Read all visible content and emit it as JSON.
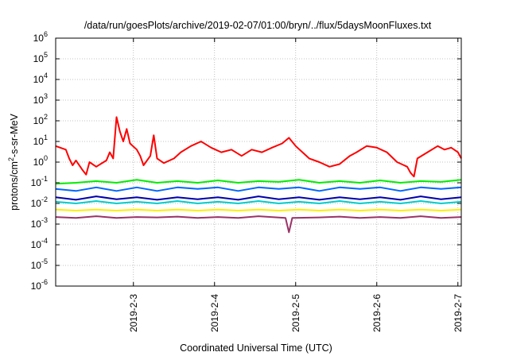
{
  "chart_data": {
    "type": "line",
    "title": "/data/run/goesPlots/archive/2019-02-07/01:00/bryn/../flux/5daysMoonFluxes.txt",
    "xlabel": "Coordinated Universal Time (UTC)",
    "ylabel_parts": {
      "base": "protons/cm",
      "sup": "2",
      "rest": "-s-sr-MeV"
    },
    "y_scale": "log",
    "ylim": [
      1e-06,
      1000000.0
    ],
    "xlim": [
      "2019-02-02T01:00",
      "2019-02-07T01:00"
    ],
    "grid": true,
    "y_tick_labels": [
      {
        "base": "10",
        "exp": "-6"
      },
      {
        "base": "10",
        "exp": "-5"
      },
      {
        "base": "10",
        "exp": "-4"
      },
      {
        "base": "10",
        "exp": "-3"
      },
      {
        "base": "10",
        "exp": "-2"
      },
      {
        "base": "10",
        "exp": "-1"
      },
      {
        "base": "10",
        "exp": "0"
      },
      {
        "base": "10",
        "exp": "1"
      },
      {
        "base": "10",
        "exp": "2"
      },
      {
        "base": "10",
        "exp": "3"
      },
      {
        "base": "10",
        "exp": "4"
      },
      {
        "base": "10",
        "exp": "5"
      },
      {
        "base": "10",
        "exp": "6"
      }
    ],
    "x_ticks": [
      {
        "label": "2019-2-3",
        "t": "2019-02-03T00:00"
      },
      {
        "label": "2019-2-4",
        "t": "2019-02-04T00:00"
      },
      {
        "label": "2019-2-5",
        "t": "2019-02-05T00:00"
      },
      {
        "label": "2019-2-6",
        "t": "2019-02-06T00:00"
      },
      {
        "label": "2019-2-7",
        "t": "2019-02-07T00:00"
      }
    ],
    "series": [
      {
        "color": "#ff0000",
        "values": [
          [
            "2019-02-02T01:00",
            6
          ],
          [
            "2019-02-02T04:00",
            4
          ],
          [
            "2019-02-02T05:00",
            1.5
          ],
          [
            "2019-02-02T06:00",
            0.7
          ],
          [
            "2019-02-02T07:00",
            1.2
          ],
          [
            "2019-02-02T09:00",
            0.4
          ],
          [
            "2019-02-02T10:00",
            0.25
          ],
          [
            "2019-02-02T11:00",
            1.0
          ],
          [
            "2019-02-02T13:00",
            0.6
          ],
          [
            "2019-02-02T16:00",
            1.2
          ],
          [
            "2019-02-02T17:00",
            3
          ],
          [
            "2019-02-02T18:00",
            1.5
          ],
          [
            "2019-02-02T19:00",
            150
          ],
          [
            "2019-02-02T20:00",
            30
          ],
          [
            "2019-02-02T21:00",
            10
          ],
          [
            "2019-02-02T22:00",
            40
          ],
          [
            "2019-02-02T23:00",
            8
          ],
          [
            "2019-02-03T01:00",
            4
          ],
          [
            "2019-02-03T02:00",
            2
          ],
          [
            "2019-02-03T03:00",
            0.7
          ],
          [
            "2019-02-03T05:00",
            2
          ],
          [
            "2019-02-03T06:00",
            20
          ],
          [
            "2019-02-03T07:00",
            1.5
          ],
          [
            "2019-02-03T09:00",
            0.9
          ],
          [
            "2019-02-03T12:00",
            1.5
          ],
          [
            "2019-02-03T14:00",
            3
          ],
          [
            "2019-02-03T17:00",
            6
          ],
          [
            "2019-02-03T20:00",
            10
          ],
          [
            "2019-02-03T23:00",
            5
          ],
          [
            "2019-02-04T02:00",
            3
          ],
          [
            "2019-02-04T05:00",
            4
          ],
          [
            "2019-02-04T08:00",
            2
          ],
          [
            "2019-02-04T11:00",
            4
          ],
          [
            "2019-02-04T14:00",
            3
          ],
          [
            "2019-02-04T17:00",
            5
          ],
          [
            "2019-02-04T20:00",
            8
          ],
          [
            "2019-02-04T22:00",
            15
          ],
          [
            "2019-02-05T00:00",
            6
          ],
          [
            "2019-02-05T02:00",
            3
          ],
          [
            "2019-02-05T04:00",
            1.5
          ],
          [
            "2019-02-05T07:00",
            1.0
          ],
          [
            "2019-02-05T10:00",
            0.6
          ],
          [
            "2019-02-05T13:00",
            0.8
          ],
          [
            "2019-02-05T16:00",
            2
          ],
          [
            "2019-02-05T18:00",
            3
          ],
          [
            "2019-02-05T21:00",
            6
          ],
          [
            "2019-02-06T00:00",
            5
          ],
          [
            "2019-02-06T03:00",
            3
          ],
          [
            "2019-02-06T06:00",
            1.0
          ],
          [
            "2019-02-06T09:00",
            0.6
          ],
          [
            "2019-02-06T10:00",
            0.3
          ],
          [
            "2019-02-06T11:00",
            0.2
          ],
          [
            "2019-02-06T12:00",
            1.5
          ],
          [
            "2019-02-06T15:00",
            3
          ],
          [
            "2019-02-06T18:00",
            6
          ],
          [
            "2019-02-06T20:00",
            4
          ],
          [
            "2019-02-06T22:00",
            5
          ],
          [
            "2019-02-07T00:00",
            3
          ],
          [
            "2019-02-07T01:00",
            1.5
          ]
        ]
      },
      {
        "color": "#00ee00",
        "values": [
          [
            "2019-02-02T01:00",
            0.09
          ],
          [
            "2019-02-02T07:00",
            0.1
          ],
          [
            "2019-02-02T13:00",
            0.12
          ],
          [
            "2019-02-02T19:00",
            0.1
          ],
          [
            "2019-02-03T01:00",
            0.14
          ],
          [
            "2019-02-03T07:00",
            0.1
          ],
          [
            "2019-02-03T13:00",
            0.12
          ],
          [
            "2019-02-03T19:00",
            0.1
          ],
          [
            "2019-02-04T01:00",
            0.13
          ],
          [
            "2019-02-04T07:00",
            0.1
          ],
          [
            "2019-02-04T13:00",
            0.12
          ],
          [
            "2019-02-04T19:00",
            0.11
          ],
          [
            "2019-02-05T01:00",
            0.14
          ],
          [
            "2019-02-05T07:00",
            0.1
          ],
          [
            "2019-02-05T13:00",
            0.12
          ],
          [
            "2019-02-05T19:00",
            0.1
          ],
          [
            "2019-02-06T01:00",
            0.13
          ],
          [
            "2019-02-06T07:00",
            0.1
          ],
          [
            "2019-02-06T13:00",
            0.12
          ],
          [
            "2019-02-06T19:00",
            0.11
          ],
          [
            "2019-02-07T01:00",
            0.14
          ]
        ]
      },
      {
        "color": "#0066ff",
        "values": [
          [
            "2019-02-02T01:00",
            0.05
          ],
          [
            "2019-02-02T07:00",
            0.04
          ],
          [
            "2019-02-02T13:00",
            0.06
          ],
          [
            "2019-02-02T19:00",
            0.04
          ],
          [
            "2019-02-03T01:00",
            0.06
          ],
          [
            "2019-02-03T07:00",
            0.04
          ],
          [
            "2019-02-03T13:00",
            0.06
          ],
          [
            "2019-02-03T19:00",
            0.05
          ],
          [
            "2019-02-04T01:00",
            0.06
          ],
          [
            "2019-02-04T07:00",
            0.04
          ],
          [
            "2019-02-04T13:00",
            0.06
          ],
          [
            "2019-02-04T19:00",
            0.05
          ],
          [
            "2019-02-05T01:00",
            0.06
          ],
          [
            "2019-02-05T07:00",
            0.04
          ],
          [
            "2019-02-05T13:00",
            0.06
          ],
          [
            "2019-02-05T19:00",
            0.05
          ],
          [
            "2019-02-06T01:00",
            0.06
          ],
          [
            "2019-02-06T07:00",
            0.04
          ],
          [
            "2019-02-06T13:00",
            0.06
          ],
          [
            "2019-02-06T19:00",
            0.05
          ],
          [
            "2019-02-07T01:00",
            0.06
          ]
        ]
      },
      {
        "color": "#0000aa",
        "values": [
          [
            "2019-02-02T01:00",
            0.02
          ],
          [
            "2019-02-02T07:00",
            0.015
          ],
          [
            "2019-02-02T13:00",
            0.022
          ],
          [
            "2019-02-02T19:00",
            0.016
          ],
          [
            "2019-02-03T01:00",
            0.02
          ],
          [
            "2019-02-03T07:00",
            0.015
          ],
          [
            "2019-02-03T13:00",
            0.02
          ],
          [
            "2019-02-03T19:00",
            0.016
          ],
          [
            "2019-02-04T01:00",
            0.02
          ],
          [
            "2019-02-04T07:00",
            0.015
          ],
          [
            "2019-02-04T13:00",
            0.022
          ],
          [
            "2019-02-04T19:00",
            0.016
          ],
          [
            "2019-02-05T01:00",
            0.02
          ],
          [
            "2019-02-05T07:00",
            0.015
          ],
          [
            "2019-02-05T13:00",
            0.02
          ],
          [
            "2019-02-05T19:00",
            0.016
          ],
          [
            "2019-02-06T01:00",
            0.02
          ],
          [
            "2019-02-06T07:00",
            0.015
          ],
          [
            "2019-02-06T13:00",
            0.022
          ],
          [
            "2019-02-06T19:00",
            0.016
          ],
          [
            "2019-02-07T01:00",
            0.02
          ]
        ]
      },
      {
        "color": "#00cccc",
        "values": [
          [
            "2019-02-02T01:00",
            0.012
          ],
          [
            "2019-02-02T07:00",
            0.01
          ],
          [
            "2019-02-02T13:00",
            0.013
          ],
          [
            "2019-02-02T19:00",
            0.01
          ],
          [
            "2019-02-03T01:00",
            0.012
          ],
          [
            "2019-02-03T07:00",
            0.01
          ],
          [
            "2019-02-03T13:00",
            0.013
          ],
          [
            "2019-02-03T19:00",
            0.01
          ],
          [
            "2019-02-04T01:00",
            0.012
          ],
          [
            "2019-02-04T07:00",
            0.01
          ],
          [
            "2019-02-04T13:00",
            0.013
          ],
          [
            "2019-02-04T19:00",
            0.01
          ],
          [
            "2019-02-05T01:00",
            0.012
          ],
          [
            "2019-02-05T07:00",
            0.01
          ],
          [
            "2019-02-05T13:00",
            0.013
          ],
          [
            "2019-02-05T19:00",
            0.01
          ],
          [
            "2019-02-06T01:00",
            0.012
          ],
          [
            "2019-02-06T07:00",
            0.01
          ],
          [
            "2019-02-06T13:00",
            0.013
          ],
          [
            "2019-02-06T19:00",
            0.01
          ],
          [
            "2019-02-07T01:00",
            0.012
          ]
        ]
      },
      {
        "color": "#ffee00",
        "values": [
          [
            "2019-02-02T01:00",
            0.005
          ],
          [
            "2019-02-02T07:00",
            0.0045
          ],
          [
            "2019-02-02T13:00",
            0.005
          ],
          [
            "2019-02-02T19:00",
            0.0045
          ],
          [
            "2019-02-03T01:00",
            0.005
          ],
          [
            "2019-02-03T07:00",
            0.0045
          ],
          [
            "2019-02-03T13:00",
            0.005
          ],
          [
            "2019-02-03T19:00",
            0.0045
          ],
          [
            "2019-02-04T01:00",
            0.005
          ],
          [
            "2019-02-04T07:00",
            0.0045
          ],
          [
            "2019-02-04T13:00",
            0.005
          ],
          [
            "2019-02-04T19:00",
            0.0045
          ],
          [
            "2019-02-05T01:00",
            0.005
          ],
          [
            "2019-02-05T07:00",
            0.0045
          ],
          [
            "2019-02-05T13:00",
            0.005
          ],
          [
            "2019-02-05T19:00",
            0.0045
          ],
          [
            "2019-02-06T01:00",
            0.005
          ],
          [
            "2019-02-06T07:00",
            0.0045
          ],
          [
            "2019-02-06T13:00",
            0.005
          ],
          [
            "2019-02-06T19:00",
            0.0045
          ],
          [
            "2019-02-07T01:00",
            0.005
          ]
        ]
      },
      {
        "color": "#993366",
        "values": [
          [
            "2019-02-02T01:00",
            0.0022
          ],
          [
            "2019-02-02T07:00",
            0.002
          ],
          [
            "2019-02-02T13:00",
            0.0024
          ],
          [
            "2019-02-02T19:00",
            0.002
          ],
          [
            "2019-02-03T01:00",
            0.0022
          ],
          [
            "2019-02-03T07:00",
            0.0021
          ],
          [
            "2019-02-03T13:00",
            0.0023
          ],
          [
            "2019-02-03T19:00",
            0.002
          ],
          [
            "2019-02-04T01:00",
            0.0022
          ],
          [
            "2019-02-04T07:00",
            0.002
          ],
          [
            "2019-02-04T13:00",
            0.0024
          ],
          [
            "2019-02-04T21:00",
            0.002
          ],
          [
            "2019-02-04T22:00",
            0.0004
          ],
          [
            "2019-02-04T23:00",
            0.002
          ],
          [
            "2019-02-05T07:00",
            0.0021
          ],
          [
            "2019-02-05T13:00",
            0.0023
          ],
          [
            "2019-02-05T19:00",
            0.002
          ],
          [
            "2019-02-06T01:00",
            0.0022
          ],
          [
            "2019-02-06T07:00",
            0.002
          ],
          [
            "2019-02-06T13:00",
            0.0024
          ],
          [
            "2019-02-06T19:00",
            0.002
          ],
          [
            "2019-02-07T01:00",
            0.0022
          ]
        ]
      }
    ]
  }
}
